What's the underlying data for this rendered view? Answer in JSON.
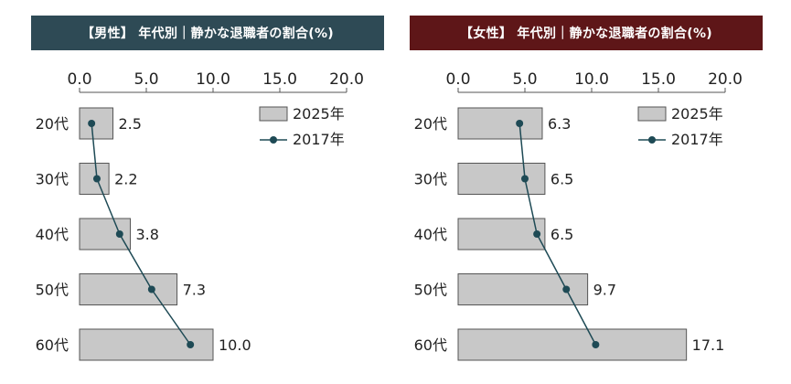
{
  "chart_data": [
    {
      "type": "bar",
      "orientation": "horizontal",
      "title": "【男性】 年代別｜静かな退職者の割合(%)",
      "title_color": "#2e4a55",
      "categories": [
        "20代",
        "30代",
        "40代",
        "50代",
        "60代"
      ],
      "xlim": [
        0,
        20
      ],
      "ticks": [
        "0.0",
        "5.0",
        "10.0",
        "15.0",
        "20.0"
      ],
      "tick_values": [
        0,
        5,
        10,
        15,
        20
      ],
      "axis_position": "top",
      "legend_position": "top-right",
      "grid": false,
      "series": [
        {
          "name": "2025年",
          "kind": "bar",
          "color": "#c8c8c8",
          "values": [
            2.5,
            2.2,
            3.8,
            7.3,
            10.0
          ],
          "labels": [
            "2.5",
            "2.2",
            "3.8",
            "7.3",
            "10.0"
          ]
        },
        {
          "name": "2017年",
          "kind": "line",
          "color": "#1e4a55",
          "values": [
            0.9,
            1.3,
            3.0,
            5.4,
            8.3
          ]
        }
      ]
    },
    {
      "type": "bar",
      "orientation": "horizontal",
      "title": "【女性】 年代別｜静かな退職者の割合(%)",
      "title_color": "#5e1618",
      "categories": [
        "20代",
        "30代",
        "40代",
        "50代",
        "60代"
      ],
      "xlim": [
        0,
        20
      ],
      "ticks": [
        "0.0",
        "5.0",
        "10.0",
        "15.0",
        "20.0"
      ],
      "tick_values": [
        0,
        5,
        10,
        15,
        20
      ],
      "axis_position": "top",
      "legend_position": "top-right",
      "grid": false,
      "series": [
        {
          "name": "2025年",
          "kind": "bar",
          "color": "#c8c8c8",
          "values": [
            6.3,
            6.5,
            6.5,
            9.7,
            17.1
          ],
          "labels": [
            "6.3",
            "6.5",
            "6.5",
            "9.7",
            "17.1"
          ]
        },
        {
          "name": "2017年",
          "kind": "line",
          "color": "#1e4a55",
          "values": [
            4.6,
            5.0,
            5.9,
            8.1,
            10.3
          ]
        }
      ]
    }
  ]
}
